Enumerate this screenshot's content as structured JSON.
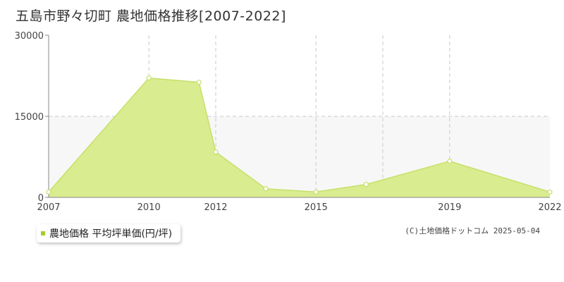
{
  "title": "五島市野々切町 農地価格推移[2007-2022]",
  "legend": {
    "label": "農地価格 平均坪単価(円/坪)"
  },
  "credit": "(C)土地価格ドットコム 2025-05-04",
  "colors": {
    "fill": "#d9ec8f",
    "line": "#c6e06a",
    "band": "#f8f7f7",
    "grid": "#c8c8c8",
    "axis": "#888888",
    "legend_swatch": "#a6cc2a"
  },
  "chart_data": {
    "type": "area",
    "title": "五島市野々切町 農地価格推移[2007-2022]",
    "xlabel": "",
    "ylabel": "",
    "ylim": [
      0,
      30000
    ],
    "yticks": [
      0,
      15000,
      30000
    ],
    "xlim": [
      2007,
      2022
    ],
    "xtick_labels": [
      2007,
      2010,
      2012,
      2015,
      2019,
      2022
    ],
    "xgrid": [
      2010,
      2012,
      2015,
      2017,
      2019
    ],
    "grid": true,
    "legend_position": "bottom-left",
    "series": [
      {
        "name": "農地価格 平均坪単価(円/坪)",
        "x": [
          2007,
          2010,
          2011.5,
          2012,
          2013.5,
          2015,
          2016.5,
          2019,
          2022
        ],
        "y": [
          1000,
          22100,
          21300,
          8400,
          1600,
          1000,
          2400,
          6700,
          1000
        ]
      }
    ]
  }
}
